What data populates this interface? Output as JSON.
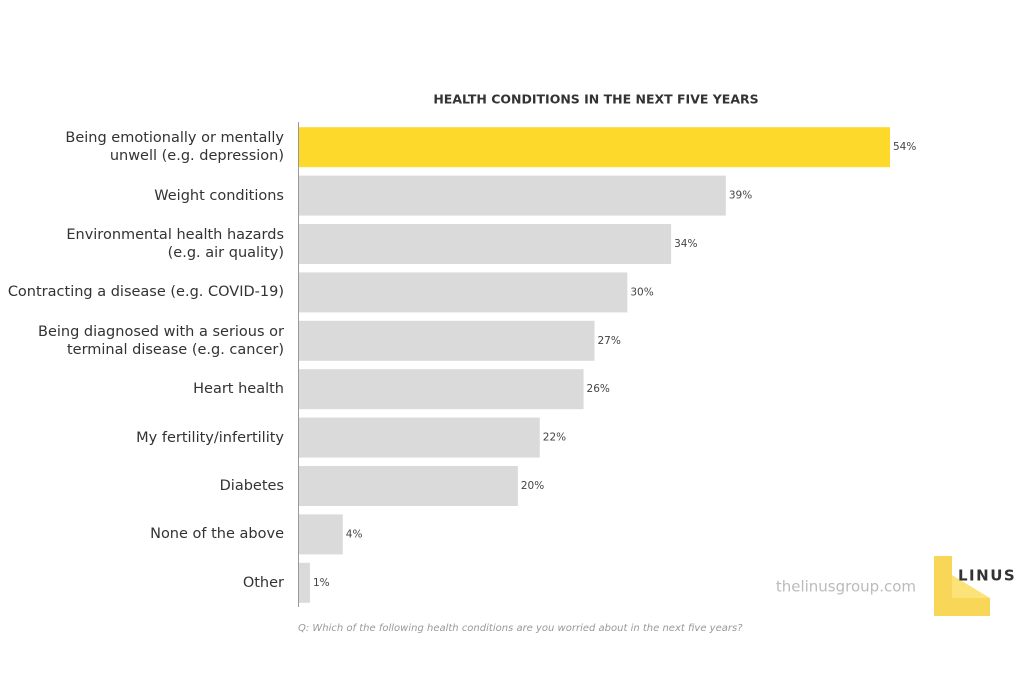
{
  "chart_data": {
    "type": "bar",
    "orientation": "horizontal",
    "title": "HEALTH CONDITIONS IN THE NEXT FIVE YEARS",
    "categories": [
      "Being emotionally or mentally\nunwell (e.g. depression)",
      "Weight conditions",
      "Environmental health hazards\n(e.g. air quality)",
      "Contracting a disease (e.g. COVID-19)",
      "Being diagnosed with a serious or\nterminal disease (e.g. cancer)",
      "Heart health",
      "My fertility/infertility",
      "Diabetes",
      "None of the above",
      "Other"
    ],
    "values": [
      54,
      39,
      34,
      30,
      27,
      26,
      22,
      20,
      4,
      1
    ],
    "value_labels": [
      "54%",
      "39%",
      "34%",
      "30%",
      "27%",
      "26%",
      "22%",
      "20%",
      "4%",
      "1%"
    ],
    "colors": [
      "#fcd92a",
      "#dadada",
      "#dadada",
      "#dadada",
      "#dadada",
      "#dadada",
      "#dadada",
      "#dadada",
      "#dadada",
      "#dadada"
    ],
    "xlim": [
      0,
      54
    ],
    "note": "Q: Which of the following health conditions are you worried about in the next five years?",
    "source": "thelinusgroup.com",
    "logo": "LINUS"
  }
}
